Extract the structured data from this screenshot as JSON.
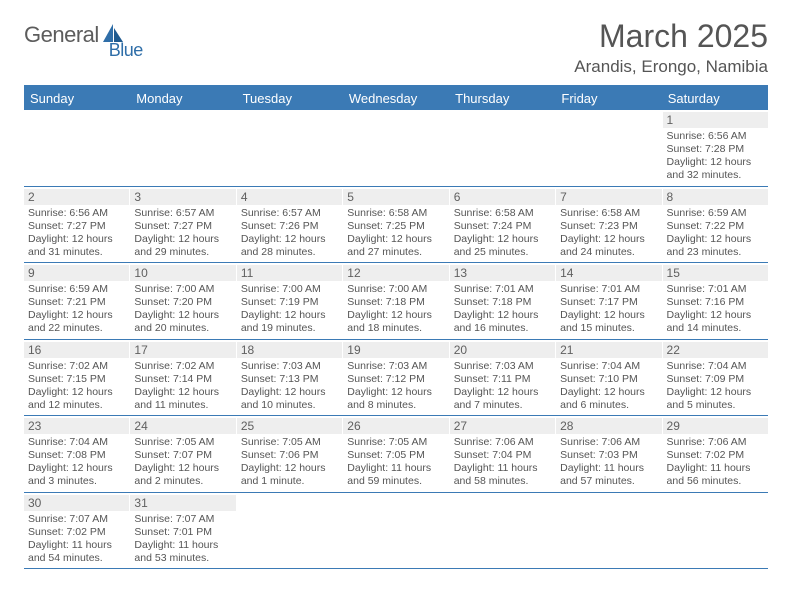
{
  "logo": {
    "part1": "General",
    "part2": "Blue"
  },
  "title": "March 2025",
  "location": "Arandis, Erongo, Namibia",
  "colors": {
    "header_bar": "#3b7ab5",
    "daynum_bg": "#eeeeee",
    "text_gray": "#555555",
    "logo_gray": "#5c5c5c",
    "logo_blue": "#2f6ea8"
  },
  "weekdays": [
    "Sunday",
    "Monday",
    "Tuesday",
    "Wednesday",
    "Thursday",
    "Friday",
    "Saturday"
  ],
  "weeks": [
    [
      null,
      null,
      null,
      null,
      null,
      null,
      {
        "n": "1",
        "sr": "6:56 AM",
        "ss": "7:28 PM",
        "dl": "12 hours and 32 minutes."
      }
    ],
    [
      {
        "n": "2",
        "sr": "6:56 AM",
        "ss": "7:27 PM",
        "dl": "12 hours and 31 minutes."
      },
      {
        "n": "3",
        "sr": "6:57 AM",
        "ss": "7:27 PM",
        "dl": "12 hours and 29 minutes."
      },
      {
        "n": "4",
        "sr": "6:57 AM",
        "ss": "7:26 PM",
        "dl": "12 hours and 28 minutes."
      },
      {
        "n": "5",
        "sr": "6:58 AM",
        "ss": "7:25 PM",
        "dl": "12 hours and 27 minutes."
      },
      {
        "n": "6",
        "sr": "6:58 AM",
        "ss": "7:24 PM",
        "dl": "12 hours and 25 minutes."
      },
      {
        "n": "7",
        "sr": "6:58 AM",
        "ss": "7:23 PM",
        "dl": "12 hours and 24 minutes."
      },
      {
        "n": "8",
        "sr": "6:59 AM",
        "ss": "7:22 PM",
        "dl": "12 hours and 23 minutes."
      }
    ],
    [
      {
        "n": "9",
        "sr": "6:59 AM",
        "ss": "7:21 PM",
        "dl": "12 hours and 22 minutes."
      },
      {
        "n": "10",
        "sr": "7:00 AM",
        "ss": "7:20 PM",
        "dl": "12 hours and 20 minutes."
      },
      {
        "n": "11",
        "sr": "7:00 AM",
        "ss": "7:19 PM",
        "dl": "12 hours and 19 minutes."
      },
      {
        "n": "12",
        "sr": "7:00 AM",
        "ss": "7:18 PM",
        "dl": "12 hours and 18 minutes."
      },
      {
        "n": "13",
        "sr": "7:01 AM",
        "ss": "7:18 PM",
        "dl": "12 hours and 16 minutes."
      },
      {
        "n": "14",
        "sr": "7:01 AM",
        "ss": "7:17 PM",
        "dl": "12 hours and 15 minutes."
      },
      {
        "n": "15",
        "sr": "7:01 AM",
        "ss": "7:16 PM",
        "dl": "12 hours and 14 minutes."
      }
    ],
    [
      {
        "n": "16",
        "sr": "7:02 AM",
        "ss": "7:15 PM",
        "dl": "12 hours and 12 minutes."
      },
      {
        "n": "17",
        "sr": "7:02 AM",
        "ss": "7:14 PM",
        "dl": "12 hours and 11 minutes."
      },
      {
        "n": "18",
        "sr": "7:03 AM",
        "ss": "7:13 PM",
        "dl": "12 hours and 10 minutes."
      },
      {
        "n": "19",
        "sr": "7:03 AM",
        "ss": "7:12 PM",
        "dl": "12 hours and 8 minutes."
      },
      {
        "n": "20",
        "sr": "7:03 AM",
        "ss": "7:11 PM",
        "dl": "12 hours and 7 minutes."
      },
      {
        "n": "21",
        "sr": "7:04 AM",
        "ss": "7:10 PM",
        "dl": "12 hours and 6 minutes."
      },
      {
        "n": "22",
        "sr": "7:04 AM",
        "ss": "7:09 PM",
        "dl": "12 hours and 5 minutes."
      }
    ],
    [
      {
        "n": "23",
        "sr": "7:04 AM",
        "ss": "7:08 PM",
        "dl": "12 hours and 3 minutes."
      },
      {
        "n": "24",
        "sr": "7:05 AM",
        "ss": "7:07 PM",
        "dl": "12 hours and 2 minutes."
      },
      {
        "n": "25",
        "sr": "7:05 AM",
        "ss": "7:06 PM",
        "dl": "12 hours and 1 minute."
      },
      {
        "n": "26",
        "sr": "7:05 AM",
        "ss": "7:05 PM",
        "dl": "11 hours and 59 minutes."
      },
      {
        "n": "27",
        "sr": "7:06 AM",
        "ss": "7:04 PM",
        "dl": "11 hours and 58 minutes."
      },
      {
        "n": "28",
        "sr": "7:06 AM",
        "ss": "7:03 PM",
        "dl": "11 hours and 57 minutes."
      },
      {
        "n": "29",
        "sr": "7:06 AM",
        "ss": "7:02 PM",
        "dl": "11 hours and 56 minutes."
      }
    ],
    [
      {
        "n": "30",
        "sr": "7:07 AM",
        "ss": "7:02 PM",
        "dl": "11 hours and 54 minutes."
      },
      {
        "n": "31",
        "sr": "7:07 AM",
        "ss": "7:01 PM",
        "dl": "11 hours and 53 minutes."
      },
      null,
      null,
      null,
      null,
      null
    ]
  ],
  "labels": {
    "sunrise": "Sunrise:",
    "sunset": "Sunset:",
    "daylight": "Daylight:"
  }
}
